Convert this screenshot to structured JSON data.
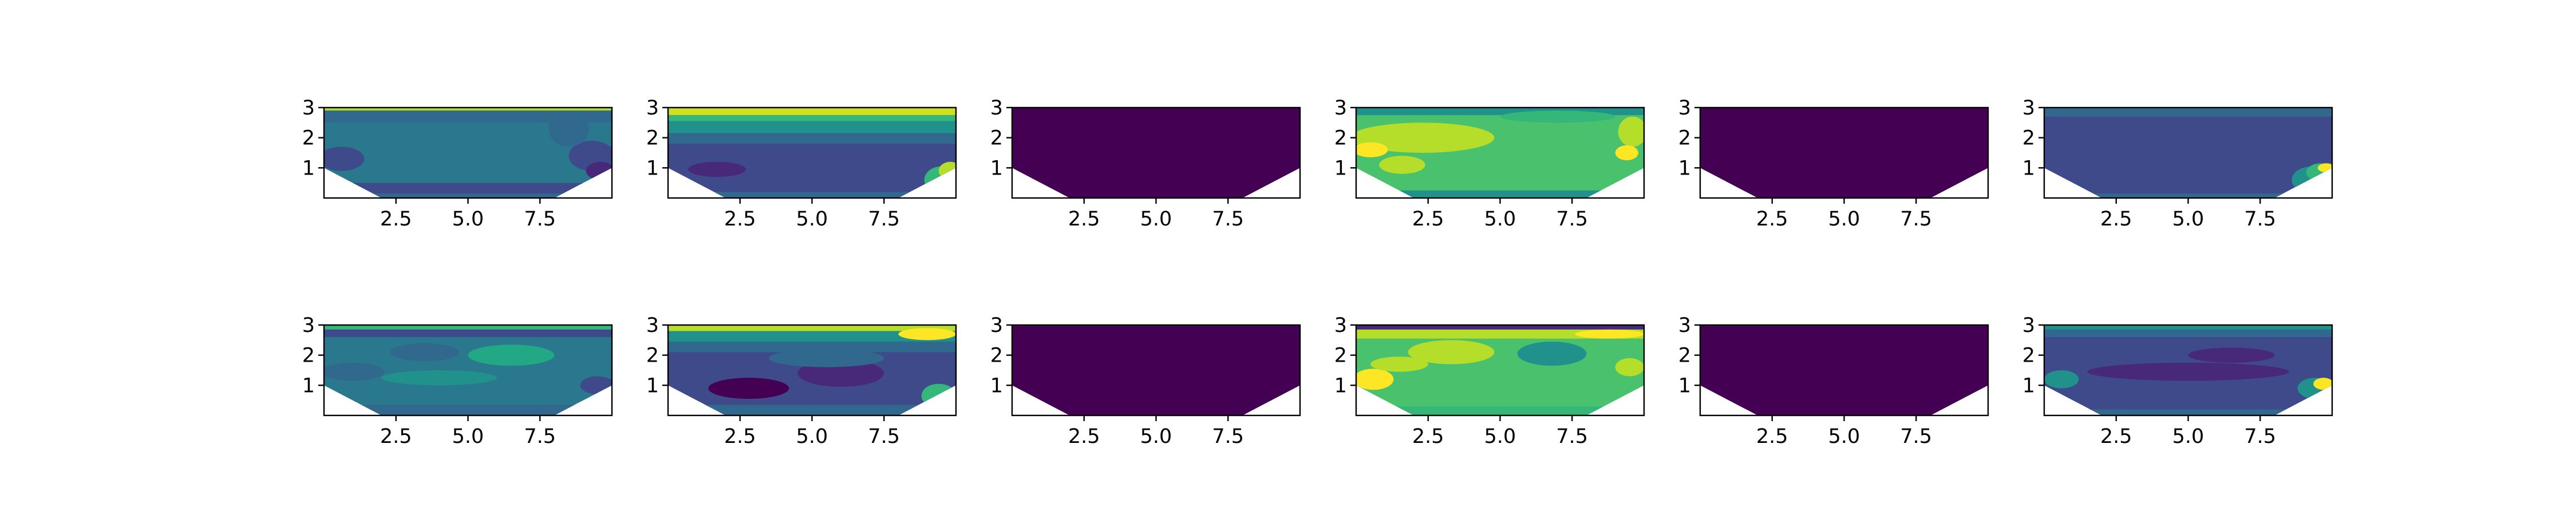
{
  "chart_data": {
    "type": "contour",
    "layout": {
      "rows": 2,
      "cols": 6
    },
    "shared_axes": {
      "xlim": [
        0,
        10
      ],
      "ylim": [
        0,
        3
      ],
      "x_ticks": [
        2.5,
        5.0,
        7.5
      ],
      "x_tick_labels": [
        "2.5",
        "5.0",
        "7.5"
      ],
      "y_ticks": [
        1,
        2,
        3
      ],
      "y_tick_labels": [
        "1",
        "2",
        "3"
      ],
      "mask_polygon": [
        [
          0,
          1
        ],
        [
          2,
          0
        ],
        [
          8,
          0
        ],
        [
          10,
          1
        ]
      ],
      "colormap": "viridis"
    },
    "panels": [
      {
        "base": "#2a788e",
        "bands": [
          {
            "y0": 2.9,
            "y1": 3.0,
            "color": "#b5de2b"
          },
          {
            "y0": 2.5,
            "y1": 2.9,
            "color": "#31688e"
          },
          {
            "y0": 0.0,
            "y1": 0.5,
            "color": "#3e4a89"
          },
          {
            "y0": 0.0,
            "y1": 0.15,
            "color": "#31688e"
          }
        ],
        "blobs": [
          {
            "cx": 0.6,
            "cy": 1.3,
            "rx": 0.8,
            "ry": 0.4,
            "color": "#3e4a89"
          },
          {
            "cx": 9.3,
            "cy": 1.4,
            "rx": 0.8,
            "ry": 0.5,
            "color": "#3e4a89"
          },
          {
            "cx": 9.6,
            "cy": 0.9,
            "rx": 0.5,
            "ry": 0.3,
            "color": "#482878"
          },
          {
            "cx": 8.5,
            "cy": 2.3,
            "rx": 0.7,
            "ry": 0.6,
            "color": "#31688e"
          }
        ]
      },
      {
        "base": "#3e4a89",
        "bands": [
          {
            "y0": 2.75,
            "y1": 3.0,
            "color": "#d0e11c"
          },
          {
            "y0": 2.55,
            "y1": 2.75,
            "color": "#35b779"
          },
          {
            "y0": 2.15,
            "y1": 2.55,
            "color": "#21918c"
          },
          {
            "y0": 1.8,
            "y1": 2.15,
            "color": "#31688e"
          },
          {
            "y0": 0.0,
            "y1": 0.2,
            "color": "#31688e"
          }
        ],
        "blobs": [
          {
            "cx": 1.7,
            "cy": 0.95,
            "rx": 1.0,
            "ry": 0.25,
            "color": "#482878"
          },
          {
            "cx": 9.5,
            "cy": 0.6,
            "rx": 0.6,
            "ry": 0.45,
            "color": "#35b779"
          },
          {
            "cx": 9.8,
            "cy": 0.9,
            "rx": 0.4,
            "ry": 0.3,
            "color": "#b5de2b"
          }
        ]
      },
      {
        "base": "#440154",
        "bands": [],
        "blobs": []
      },
      {
        "base": "#4ac16d",
        "bands": [
          {
            "y0": 2.75,
            "y1": 3.0,
            "color": "#21918c"
          },
          {
            "y0": 0.0,
            "y1": 0.25,
            "color": "#21918c"
          }
        ],
        "blobs": [
          {
            "cx": 2.3,
            "cy": 2.0,
            "rx": 2.5,
            "ry": 0.5,
            "color": "#b5de2b"
          },
          {
            "cx": 0.5,
            "cy": 1.6,
            "rx": 0.6,
            "ry": 0.25,
            "color": "#fde725"
          },
          {
            "cx": 1.6,
            "cy": 1.1,
            "rx": 0.8,
            "ry": 0.3,
            "color": "#b5de2b"
          },
          {
            "cx": 9.6,
            "cy": 2.2,
            "rx": 0.5,
            "ry": 0.5,
            "color": "#b5de2b"
          },
          {
            "cx": 9.4,
            "cy": 1.5,
            "rx": 0.4,
            "ry": 0.25,
            "color": "#fde725"
          },
          {
            "cx": 7.0,
            "cy": 2.7,
            "rx": 2.0,
            "ry": 0.2,
            "color": "#35b779"
          }
        ]
      },
      {
        "base": "#440154",
        "bands": [],
        "blobs": []
      },
      {
        "base": "#3e4a89",
        "bands": [
          {
            "y0": 2.7,
            "y1": 3.0,
            "color": "#31688e"
          },
          {
            "y0": 0.0,
            "y1": 0.15,
            "color": "#31688e"
          }
        ],
        "blobs": [
          {
            "cx": 9.3,
            "cy": 0.6,
            "rx": 0.7,
            "ry": 0.45,
            "color": "#21918c"
          },
          {
            "cx": 9.6,
            "cy": 0.85,
            "rx": 0.5,
            "ry": 0.3,
            "color": "#35b779"
          },
          {
            "cx": 9.8,
            "cy": 1.0,
            "rx": 0.3,
            "ry": 0.15,
            "color": "#fde725"
          }
        ]
      },
      {
        "base": "#2a788e",
        "bands": [
          {
            "y0": 2.85,
            "y1": 3.0,
            "color": "#35b779"
          },
          {
            "y0": 2.6,
            "y1": 2.85,
            "color": "#3e4a89"
          },
          {
            "y0": 0.0,
            "y1": 0.35,
            "color": "#31688e"
          }
        ],
        "blobs": [
          {
            "cx": 6.5,
            "cy": 2.0,
            "rx": 1.5,
            "ry": 0.35,
            "color": "#22a884"
          },
          {
            "cx": 4.0,
            "cy": 1.25,
            "rx": 2.0,
            "ry": 0.25,
            "color": "#21918c"
          },
          {
            "cx": 1.0,
            "cy": 1.45,
            "rx": 1.1,
            "ry": 0.3,
            "color": "#31688e"
          },
          {
            "cx": 3.5,
            "cy": 2.1,
            "rx": 1.2,
            "ry": 0.3,
            "color": "#31688e"
          },
          {
            "cx": 9.5,
            "cy": 1.0,
            "rx": 0.6,
            "ry": 0.3,
            "color": "#3e4a89"
          }
        ]
      },
      {
        "base": "#3e4a89",
        "bands": [
          {
            "y0": 2.8,
            "y1": 3.0,
            "color": "#b5de2b"
          },
          {
            "y0": 2.45,
            "y1": 2.8,
            "color": "#21918c"
          },
          {
            "y0": 2.1,
            "y1": 2.45,
            "color": "#31688e"
          },
          {
            "y0": 0.0,
            "y1": 0.35,
            "color": "#31688e"
          }
        ],
        "blobs": [
          {
            "cx": 9.0,
            "cy": 2.7,
            "rx": 1.0,
            "ry": 0.2,
            "color": "#fde725"
          },
          {
            "cx": 2.8,
            "cy": 0.9,
            "rx": 1.4,
            "ry": 0.35,
            "color": "#440154"
          },
          {
            "cx": 6.0,
            "cy": 1.4,
            "rx": 1.5,
            "ry": 0.45,
            "color": "#482878"
          },
          {
            "cx": 5.5,
            "cy": 1.9,
            "rx": 2.0,
            "ry": 0.3,
            "color": "#31688e"
          },
          {
            "cx": 9.4,
            "cy": 0.65,
            "rx": 0.6,
            "ry": 0.4,
            "color": "#35b779"
          }
        ]
      },
      {
        "base": "#440154",
        "bands": [],
        "blobs": []
      },
      {
        "base": "#4ac16d",
        "bands": [
          {
            "y0": 2.85,
            "y1": 3.0,
            "color": "#482878"
          },
          {
            "y0": 2.55,
            "y1": 2.85,
            "color": "#b5de2b"
          },
          {
            "y0": 0.0,
            "y1": 0.3,
            "color": "#35b779"
          }
        ],
        "blobs": [
          {
            "cx": 6.8,
            "cy": 2.05,
            "rx": 1.2,
            "ry": 0.4,
            "color": "#21918c"
          },
          {
            "cx": 3.3,
            "cy": 2.1,
            "rx": 1.5,
            "ry": 0.4,
            "color": "#b5de2b"
          },
          {
            "cx": 0.6,
            "cy": 1.2,
            "rx": 0.7,
            "ry": 0.35,
            "color": "#fde725"
          },
          {
            "cx": 1.5,
            "cy": 1.7,
            "rx": 1.0,
            "ry": 0.25,
            "color": "#b5de2b"
          },
          {
            "cx": 8.8,
            "cy": 2.7,
            "rx": 1.2,
            "ry": 0.15,
            "color": "#fde725"
          },
          {
            "cx": 9.5,
            "cy": 1.6,
            "rx": 0.5,
            "ry": 0.3,
            "color": "#b5de2b"
          }
        ]
      },
      {
        "base": "#440154",
        "bands": [],
        "blobs": []
      },
      {
        "base": "#3e4a89",
        "bands": [
          {
            "y0": 2.85,
            "y1": 3.0,
            "color": "#21918c"
          },
          {
            "y0": 2.6,
            "y1": 2.85,
            "color": "#31688e"
          },
          {
            "y0": 0.0,
            "y1": 0.2,
            "color": "#31688e"
          }
        ],
        "blobs": [
          {
            "cx": 5.0,
            "cy": 1.45,
            "rx": 3.5,
            "ry": 0.3,
            "color": "#482878"
          },
          {
            "cx": 6.5,
            "cy": 2.0,
            "rx": 1.5,
            "ry": 0.25,
            "color": "#482878"
          },
          {
            "cx": 0.6,
            "cy": 1.2,
            "rx": 0.6,
            "ry": 0.3,
            "color": "#21918c"
          },
          {
            "cx": 9.4,
            "cy": 0.9,
            "rx": 0.6,
            "ry": 0.35,
            "color": "#21918c"
          },
          {
            "cx": 9.7,
            "cy": 1.05,
            "rx": 0.35,
            "ry": 0.2,
            "color": "#fde725"
          }
        ]
      }
    ]
  }
}
